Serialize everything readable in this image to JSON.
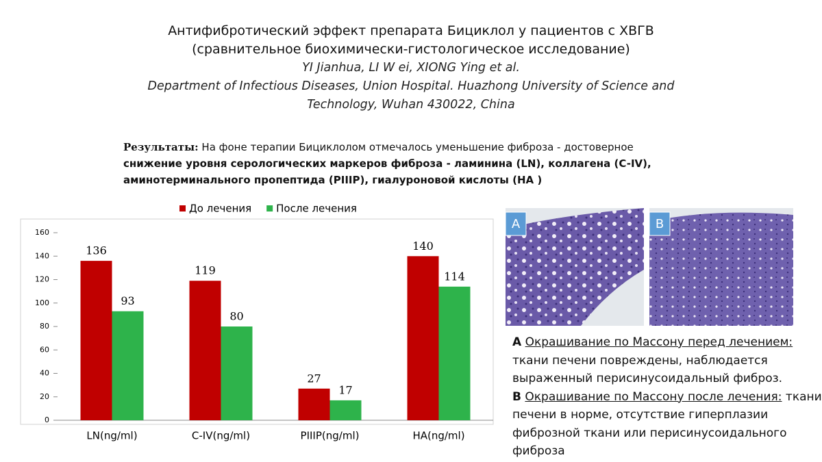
{
  "header": {
    "title_lines": [
      "Антифибротический эффект препарата Бициклол у пациентов с ХВГВ",
      "(сравнительное биохимически-гистологическое исследование)"
    ],
    "authors": "YI Jianhua, LI W ei, XIONG Ying et al.",
    "affiliation": "Department of Infectious Diseases, Union Hospital. Huazhong University of Science and Technology, Wuhan 430022, China"
  },
  "results": {
    "label": "Результаты:",
    "text": "На фоне терапии Бициклолом отмечалось уменьшение фиброза - достоверное",
    "bold": "снижение уровня серологических маркеров фиброза  - ламинина (LN), коллагена (C-IV), аминотерминального пропептида (PIIIP), гиалуроновой кислоты (HA )"
  },
  "chart_data": {
    "type": "bar",
    "categories": [
      "LN(ng/ml)",
      "C-IV(ng/ml)",
      "PIIIP(ng/ml)",
      "HA(ng/ml)"
    ],
    "series": [
      {
        "name": "До лечения",
        "color": "#c00000",
        "values": [
          136,
          119,
          27,
          140
        ]
      },
      {
        "name": "После лечения",
        "color": "#2eb34b",
        "values": [
          93,
          80,
          17,
          114
        ]
      }
    ],
    "ylim": [
      0,
      160
    ],
    "yticks": [
      0,
      20,
      40,
      60,
      80,
      100,
      120,
      140,
      160
    ],
    "legend": "top"
  },
  "figure": {
    "panels": [
      "A",
      "B"
    ],
    "captions": [
      {
        "letter": "A",
        "heading": "Окрашивание по Массону перед лечением:",
        "text": "ткани печени повреждены, наблюдается выраженный перисинусоидальный фиброз."
      },
      {
        "letter": "B",
        "heading": "Окрашивание по Массону после лечения:",
        "text": "ткани печени в норме, отсутствие гиперплазии фиброзной ткани или перисинусоидального фиброза"
      }
    ]
  }
}
